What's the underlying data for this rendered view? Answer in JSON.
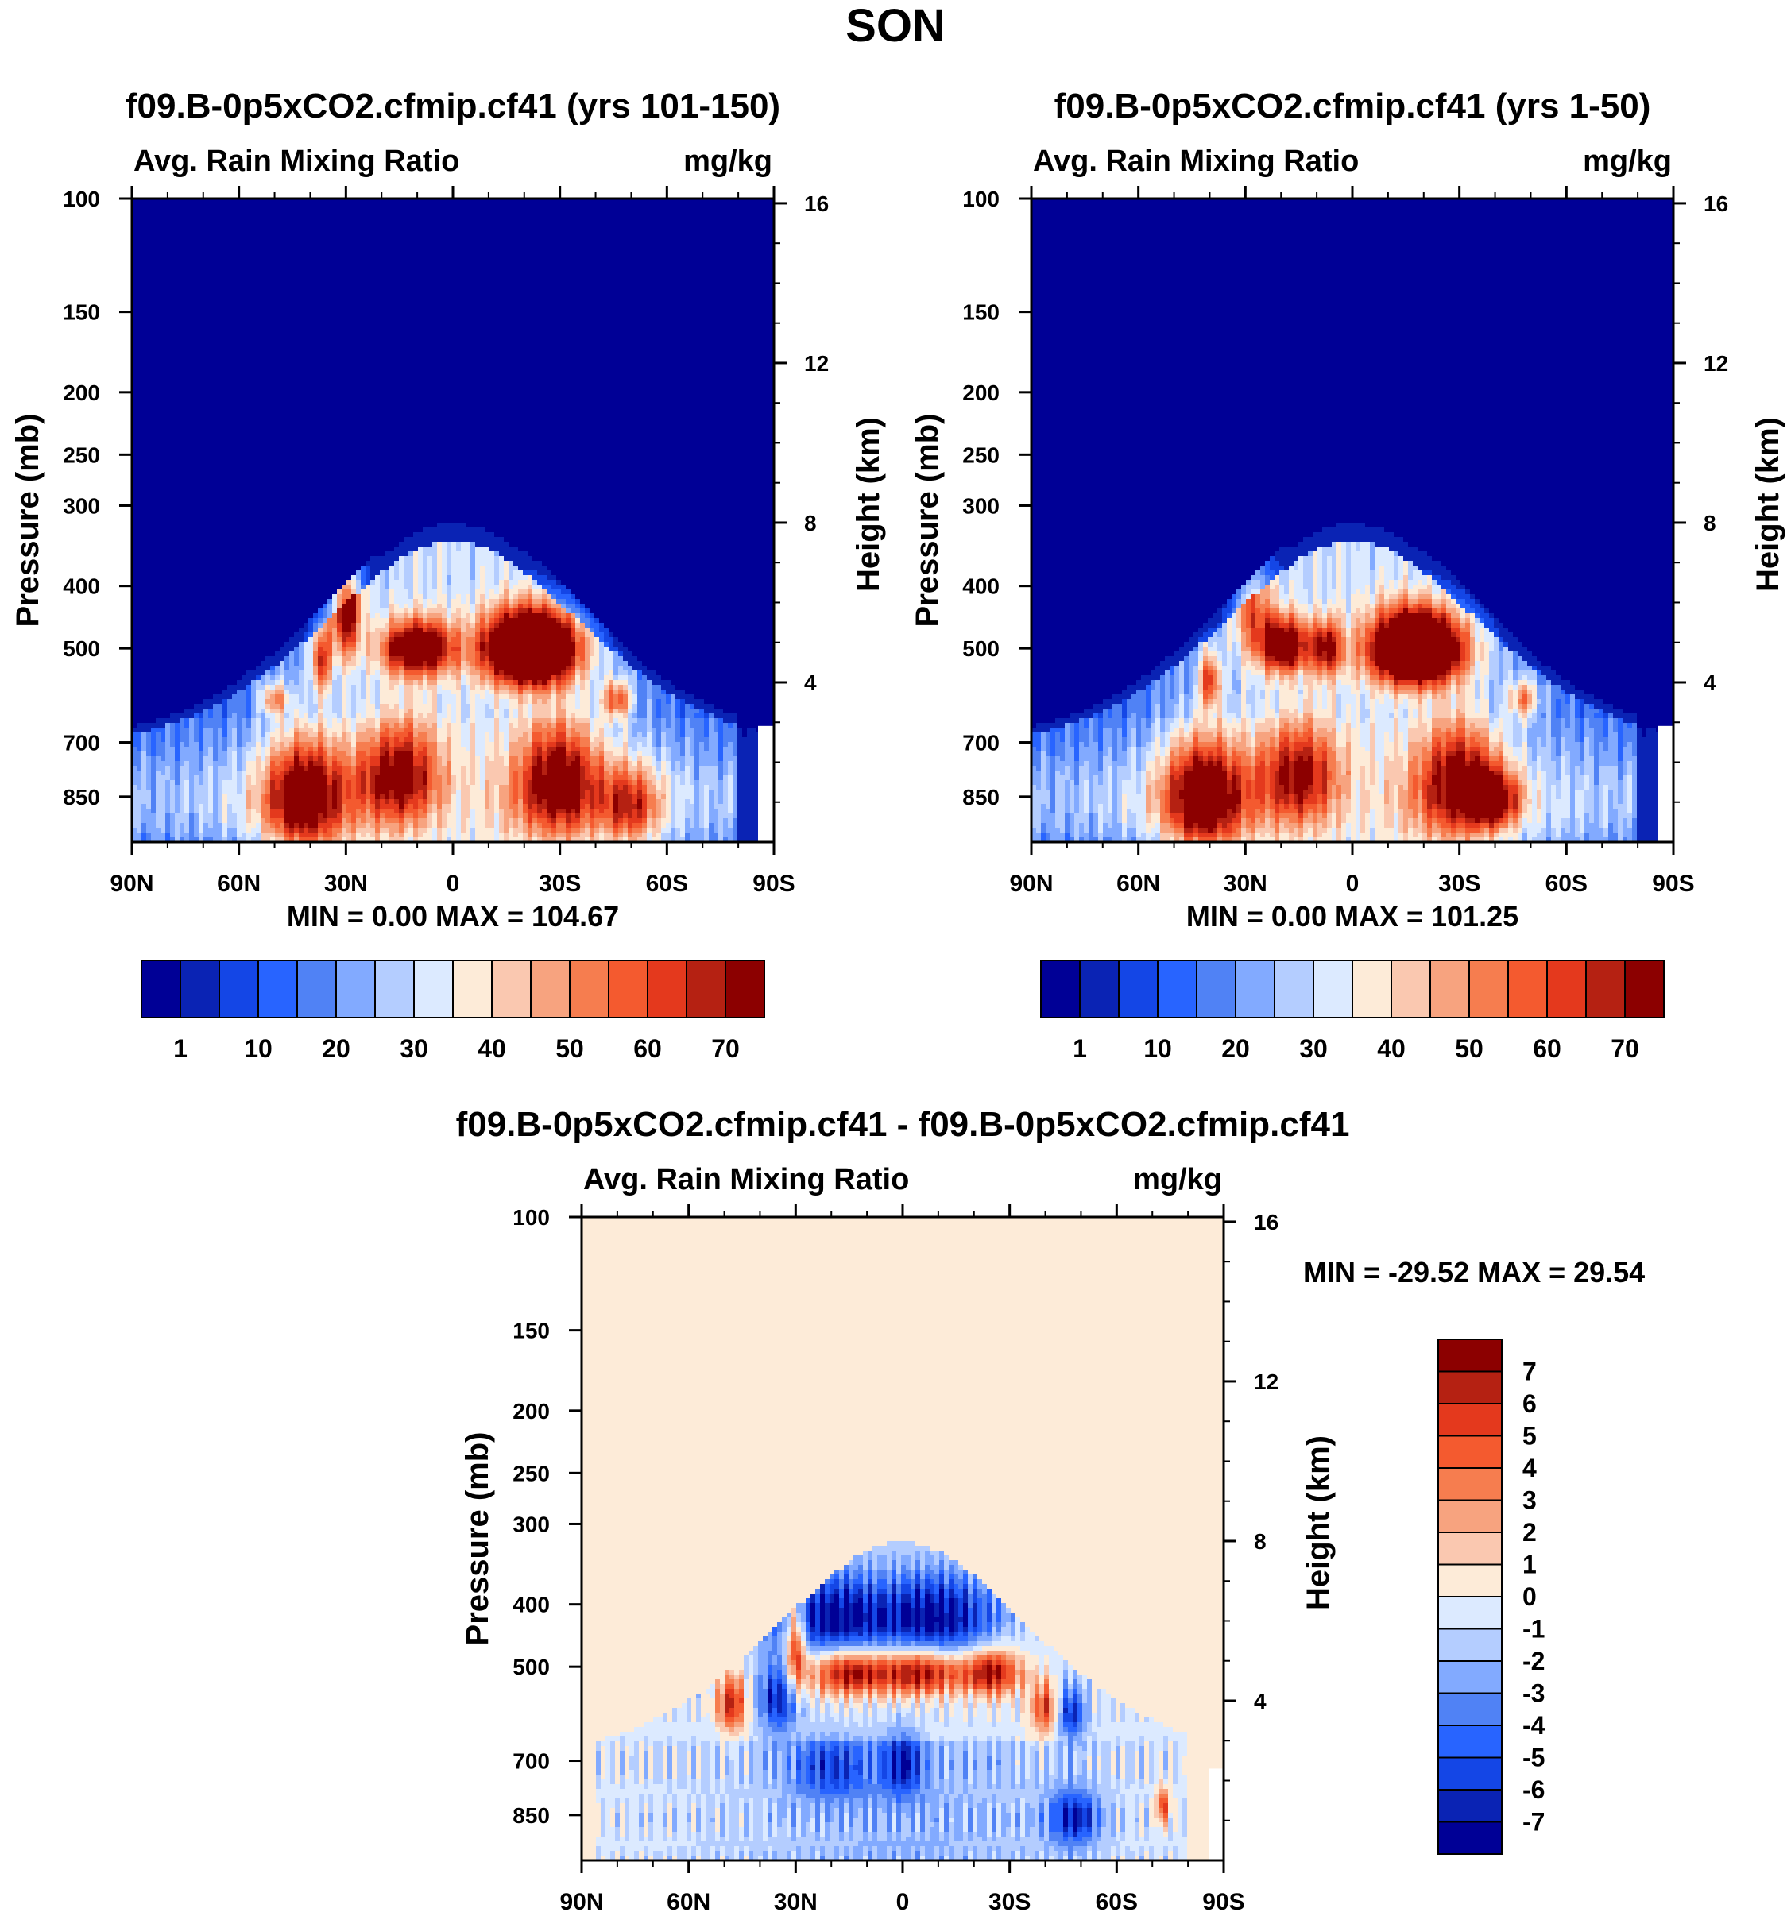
{
  "figure_title": "SON",
  "palettes": {
    "abs": [
      "#000096",
      "#0a23b4",
      "#1446e6",
      "#2864ff",
      "#5082f5",
      "#82aaff",
      "#b4cdff",
      "#dceaff",
      "#fdebd8",
      "#fac8b0",
      "#f7a37f",
      "#f67d4f",
      "#f45a2f",
      "#e4391d",
      "#b52112",
      "#8c0000"
    ],
    "diff": [
      "#000096",
      "#0a23b4",
      "#1446e6",
      "#2864ff",
      "#5082f5",
      "#82aaff",
      "#b4cdff",
      "#dceaff",
      "#fdebd8",
      "#fac8b0",
      "#f7a37f",
      "#f67d4f",
      "#f45a2f",
      "#e4391d",
      "#b52112",
      "#8c0000"
    ]
  },
  "chart_data": [
    {
      "id": "panel-yrs-101-150",
      "type": "heatmap",
      "title": "f09.B-0p5xCO2.cfmip.cf41 (yrs 101-150)",
      "left_string": "Avg. Rain Mixing Ratio",
      "right_string": "mg/kg",
      "ylabel": "Pressure (mb)",
      "ylabel_right": "Height (km)",
      "x_ticks": [
        "90N",
        "60N",
        "30N",
        "0",
        "30S",
        "60S",
        "90S"
      ],
      "x_range": [
        90,
        -90
      ],
      "y_range_mb": [
        100,
        1000
      ],
      "y_ticks": [
        100,
        150,
        200,
        250,
        300,
        400,
        500,
        700,
        850
      ],
      "y_ticks_right_km": [
        16,
        12,
        8,
        4
      ],
      "stats": "MIN =   0.00  MAX = 104.67",
      "colorbar_labels": [
        "1",
        "10",
        "20",
        "30",
        "40",
        "50",
        "60",
        "70"
      ],
      "features": [
        {
          "lat": -22,
          "p": 500,
          "value": 104,
          "wlat": 9,
          "wp": 45
        },
        {
          "lat": 10,
          "p": 500,
          "value": 62,
          "wlat": 7,
          "wp": 35
        },
        {
          "lat": 30,
          "p": 430,
          "value": 55,
          "wlat": 3,
          "wp": 60
        },
        {
          "lat": 37,
          "p": 520,
          "value": 40,
          "wlat": 2,
          "wp": 45
        },
        {
          "lat": -46,
          "p": 600,
          "value": 38,
          "wlat": 3,
          "wp": 30
        },
        {
          "lat": 50,
          "p": 600,
          "value": 30,
          "wlat": 3,
          "wp": 25
        },
        {
          "lat": 42,
          "p": 850,
          "value": 52,
          "wlat": 8,
          "wp": 120
        },
        {
          "lat": -30,
          "p": 800,
          "value": 45,
          "wlat": 8,
          "wp": 120
        },
        {
          "lat": 15,
          "p": 780,
          "value": 40,
          "wlat": 8,
          "wp": 100
        },
        {
          "lat": -50,
          "p": 880,
          "value": 35,
          "wlat": 6,
          "wp": 90
        }
      ]
    },
    {
      "id": "panel-yrs-1-50",
      "type": "heatmap",
      "title": "f09.B-0p5xCO2.cfmip.cf41 (yrs 1-50)",
      "left_string": "Avg. Rain Mixing Ratio",
      "right_string": "mg/kg",
      "ylabel": "Pressure (mb)",
      "ylabel_right": "Height (km)",
      "x_ticks": [
        "90N",
        "60N",
        "30N",
        "0",
        "30S",
        "60S",
        "90S"
      ],
      "x_range": [
        90,
        -90
      ],
      "y_range_mb": [
        100,
        1000
      ],
      "y_ticks": [
        100,
        150,
        200,
        250,
        300,
        400,
        500,
        700,
        850
      ],
      "y_ticks_right_km": [
        16,
        12,
        8,
        4
      ],
      "stats": "MIN =   0.00  MAX = 101.25",
      "colorbar_labels": [
        "1",
        "10",
        "20",
        "30",
        "40",
        "50",
        "60",
        "70"
      ],
      "features": [
        {
          "lat": -18,
          "p": 500,
          "value": 100,
          "wlat": 9,
          "wp": 45
        },
        {
          "lat": 19,
          "p": 495,
          "value": 58,
          "wlat": 5,
          "wp": 35
        },
        {
          "lat": 7,
          "p": 500,
          "value": 42,
          "wlat": 3,
          "wp": 35
        },
        {
          "lat": 40,
          "p": 560,
          "value": 40,
          "wlat": 2,
          "wp": 40
        },
        {
          "lat": -48,
          "p": 600,
          "value": 32,
          "wlat": 3,
          "wp": 30
        },
        {
          "lat": 28,
          "p": 430,
          "value": 30,
          "wlat": 4,
          "wp": 60
        },
        {
          "lat": 42,
          "p": 850,
          "value": 55,
          "wlat": 8,
          "wp": 120
        },
        {
          "lat": -30,
          "p": 800,
          "value": 42,
          "wlat": 8,
          "wp": 120
        },
        {
          "lat": 15,
          "p": 780,
          "value": 36,
          "wlat": 8,
          "wp": 100
        },
        {
          "lat": -40,
          "p": 860,
          "value": 40,
          "wlat": 5,
          "wp": 60
        }
      ]
    },
    {
      "id": "panel-difference",
      "type": "heatmap",
      "title": "f09.B-0p5xCO2.cfmip.cf41 - f09.B-0p5xCO2.cfmip.cf41",
      "left_string": "Avg. Rain Mixing Ratio",
      "right_string": "mg/kg",
      "ylabel": "Pressure (mb)",
      "ylabel_right": "Height (km)",
      "x_ticks": [
        "90N",
        "60N",
        "30N",
        "0",
        "30S",
        "60S",
        "90S"
      ],
      "x_range": [
        90,
        -90
      ],
      "y_range_mb": [
        100,
        1000
      ],
      "y_ticks": [
        100,
        150,
        200,
        250,
        300,
        400,
        500,
        700,
        850
      ],
      "y_ticks_right_km": [
        16,
        12,
        8,
        4
      ],
      "stats": "MIN = -29.52  MAX =  29.54",
      "colorbar_labels": [
        "7",
        "6",
        "5",
        "4",
        "3",
        "2",
        "1",
        "0",
        "-1",
        "-2",
        "-3",
        "-4",
        "-5",
        "-6",
        "-7"
      ],
      "features": [
        {
          "lat": 30,
          "p": 460,
          "value": 8,
          "wlat": 2,
          "wp": 55
        },
        {
          "lat": 15,
          "p": 510,
          "value": 8,
          "wlat": 8,
          "wp": 30
        },
        {
          "lat": -5,
          "p": 510,
          "value": 8,
          "wlat": 8,
          "wp": 30
        },
        {
          "lat": -25,
          "p": 510,
          "value": 8,
          "wlat": 6,
          "wp": 30
        },
        {
          "lat": 20,
          "p": 420,
          "value": -7,
          "wlat": 12,
          "wp": 45
        },
        {
          "lat": -10,
          "p": 420,
          "value": -7,
          "wlat": 12,
          "wp": 45
        },
        {
          "lat": 35,
          "p": 560,
          "value": -6,
          "wlat": 4,
          "wp": 50
        },
        {
          "lat": 48,
          "p": 570,
          "value": 7,
          "wlat": 3,
          "wp": 40
        },
        {
          "lat": -40,
          "p": 580,
          "value": 6,
          "wlat": 3,
          "wp": 40
        },
        {
          "lat": -47,
          "p": 590,
          "value": -6,
          "wlat": 3,
          "wp": 40
        },
        {
          "lat": 0,
          "p": 710,
          "value": -5,
          "wlat": 4,
          "wp": 60
        },
        {
          "lat": -48,
          "p": 860,
          "value": -6,
          "wlat": 5,
          "wp": 60
        },
        {
          "lat": 20,
          "p": 720,
          "value": -4,
          "wlat": 8,
          "wp": 60
        },
        {
          "lat": -73,
          "p": 820,
          "value": 6,
          "wlat": 1.5,
          "wp": 40
        }
      ]
    }
  ]
}
